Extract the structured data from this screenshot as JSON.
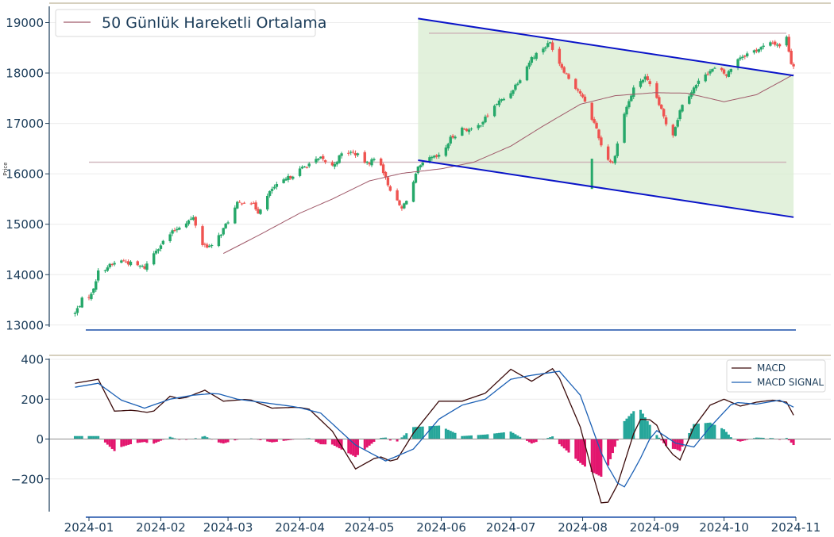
{
  "colors": {
    "up": "#26a86a",
    "down": "#ef5350",
    "ma": "#a05a6a",
    "channel": "#0a14c8",
    "channel_fill": "#d8ecd0",
    "macd": "#3a0a0a",
    "signal": "#1a5fb4",
    "hist_pos": "#26a69a",
    "hist_neg": "#e3166e",
    "hline": "#c8a8b0",
    "axis": "#1c3d5a",
    "separator": "#c8c0a8"
  },
  "chart_data": [
    {
      "type": "candlestick",
      "ylabel": "Price",
      "ylim": [
        12900,
        19100
      ],
      "yticks": [
        "13000",
        "14000",
        "15000",
        "16000",
        "17000",
        "18000",
        "19000"
      ],
      "legend": {
        "position": "top-left",
        "ma_label": "50 Günlük Hareketli Ortalama"
      },
      "grid": true,
      "resistance_levels": [
        18790,
        16230
      ],
      "channel": {
        "start_date": "2024-05-22",
        "end_date": "2024-10-31",
        "upper": [
          19080,
          17950
        ],
        "lower": [
          16270,
          15140
        ]
      },
      "ohlc_anchors": [
        [
          "2023-12-26",
          13230
        ],
        [
          "2023-12-29",
          13500
        ],
        [
          "2024-01-02",
          13600
        ],
        [
          "2024-01-05",
          14050
        ],
        [
          "2024-01-10",
          14180
        ],
        [
          "2024-01-15",
          14290
        ],
        [
          "2024-01-20",
          14200
        ],
        [
          "2024-01-25",
          14140
        ],
        [
          "2024-01-30",
          14500
        ],
        [
          "2024-02-05",
          14800
        ],
        [
          "2024-02-10",
          15000
        ],
        [
          "2024-02-15",
          15120
        ],
        [
          "2024-02-19",
          14600
        ],
        [
          "2024-02-23",
          14550
        ],
        [
          "2024-02-28",
          14900
        ],
        [
          "2024-03-05",
          15400
        ],
        [
          "2024-03-10",
          15500
        ],
        [
          "2024-03-14",
          15250
        ],
        [
          "2024-03-20",
          15700
        ],
        [
          "2024-03-25",
          15850
        ],
        [
          "2024-03-31",
          16050
        ],
        [
          "2024-04-05",
          16200
        ],
        [
          "2024-04-10",
          16300
        ],
        [
          "2024-04-15",
          16150
        ],
        [
          "2024-04-20",
          16450
        ],
        [
          "2024-04-25",
          16400
        ],
        [
          "2024-04-30",
          16200
        ],
        [
          "2024-05-05",
          16350
        ],
        [
          "2024-05-08",
          15900
        ],
        [
          "2024-05-12",
          15500
        ],
        [
          "2024-05-15",
          15300
        ],
        [
          "2024-05-19",
          15700
        ],
        [
          "2024-05-22",
          16100
        ],
        [
          "2024-05-27",
          16300
        ],
        [
          "2024-06-01",
          16350
        ],
        [
          "2024-06-05",
          16700
        ],
        [
          "2024-06-10",
          16900
        ],
        [
          "2024-06-15",
          16850
        ],
        [
          "2024-06-20",
          17100
        ],
        [
          "2024-06-25",
          17400
        ],
        [
          "2024-06-30",
          17550
        ],
        [
          "2024-07-05",
          17900
        ],
        [
          "2024-07-10",
          18300
        ],
        [
          "2024-07-15",
          18500
        ],
        [
          "2024-07-18",
          18600
        ],
        [
          "2024-07-22",
          18200
        ],
        [
          "2024-07-26",
          17900
        ],
        [
          "2024-07-31",
          17600
        ],
        [
          "2024-08-04",
          17200
        ],
        [
          "2024-08-07",
          16900
        ],
        [
          "2024-08-10",
          16400
        ],
        [
          "2024-08-14",
          16200
        ],
        [
          "2024-08-19",
          17200
        ],
        [
          "2024-08-24",
          17800
        ],
        [
          "2024-08-28",
          17900
        ],
        [
          "2024-09-02",
          17500
        ],
        [
          "2024-09-06",
          17000
        ],
        [
          "2024-09-09",
          16800
        ],
        [
          "2024-09-13",
          17400
        ],
        [
          "2024-09-18",
          17700
        ],
        [
          "2024-09-23",
          18000
        ],
        [
          "2024-09-28",
          18100
        ],
        [
          "2024-10-02",
          17950
        ],
        [
          "2024-10-07",
          18300
        ],
        [
          "2024-10-12",
          18400
        ],
        [
          "2024-10-17",
          18500
        ],
        [
          "2024-10-22",
          18600
        ],
        [
          "2024-10-25",
          18550
        ],
        [
          "2024-10-28",
          18700
        ],
        [
          "2024-10-30",
          18200
        ],
        [
          "2024-10-31",
          18150
        ]
      ],
      "ma50_anchors": [
        [
          "2024-02-28",
          14420
        ],
        [
          "2024-03-15",
          14800
        ],
        [
          "2024-04-01",
          15220
        ],
        [
          "2024-04-15",
          15500
        ],
        [
          "2024-05-01",
          15860
        ],
        [
          "2024-05-15",
          16010
        ],
        [
          "2024-06-01",
          16100
        ],
        [
          "2024-06-15",
          16230
        ],
        [
          "2024-07-01",
          16550
        ],
        [
          "2024-07-15",
          16950
        ],
        [
          "2024-07-31",
          17380
        ],
        [
          "2024-08-15",
          17550
        ],
        [
          "2024-09-01",
          17610
        ],
        [
          "2024-09-15",
          17600
        ],
        [
          "2024-10-01",
          17430
        ],
        [
          "2024-10-15",
          17570
        ],
        [
          "2024-10-31",
          17970
        ]
      ]
    },
    {
      "type": "line",
      "ylim": [
        -360,
        410
      ],
      "yticks": [
        "−200",
        "0",
        "200",
        "400"
      ],
      "legend": {
        "position": "top-right"
      },
      "grid": true,
      "x": [
        "2024-01",
        "2024-02",
        "2024-03",
        "2024-04",
        "2024-05",
        "2024-06",
        "2024-07",
        "2024-08",
        "2024-09",
        "2024-10",
        "2024-11"
      ],
      "series": [
        {
          "name": "MACD",
          "anchors": [
            [
              "2023-12-26",
              280
            ],
            [
              "2024-01-05",
              300
            ],
            [
              "2024-01-12",
              140
            ],
            [
              "2024-01-20",
              145
            ],
            [
              "2024-01-28",
              130
            ],
            [
              "2024-02-05",
              215
            ],
            [
              "2024-02-10",
              200
            ],
            [
              "2024-02-20",
              245
            ],
            [
              "2024-02-28",
              190
            ],
            [
              "2024-03-10",
              200
            ],
            [
              "2024-03-20",
              155
            ],
            [
              "2024-03-31",
              160
            ],
            [
              "2024-04-05",
              150
            ],
            [
              "2024-04-15",
              40
            ],
            [
              "2024-04-25",
              -150
            ],
            [
              "2024-05-05",
              -85
            ],
            [
              "2024-05-12",
              -120
            ],
            [
              "2024-05-20",
              30
            ],
            [
              "2024-05-31",
              190
            ],
            [
              "2024-06-10",
              190
            ],
            [
              "2024-06-20",
              230
            ],
            [
              "2024-07-01",
              350
            ],
            [
              "2024-07-10",
              290
            ],
            [
              "2024-07-20",
              360
            ],
            [
              "2024-07-31",
              60
            ],
            [
              "2024-08-05",
              -160
            ],
            [
              "2024-08-10",
              -360
            ],
            [
              "2024-08-16",
              -230
            ],
            [
              "2024-08-25",
              100
            ],
            [
              "2024-09-01",
              95
            ],
            [
              "2024-09-07",
              -60
            ],
            [
              "2024-09-12",
              -105
            ],
            [
              "2024-09-18",
              60
            ],
            [
              "2024-09-25",
              170
            ],
            [
              "2024-10-01",
              200
            ],
            [
              "2024-10-08",
              165
            ],
            [
              "2024-10-15",
              185
            ],
            [
              "2024-10-22",
              195
            ],
            [
              "2024-10-28",
              185
            ],
            [
              "2024-10-31",
              120
            ]
          ]
        },
        {
          "name": "MACD SIGNAL",
          "anchors": [
            [
              "2023-12-26",
              260
            ],
            [
              "2024-01-05",
              280
            ],
            [
              "2024-01-15",
              195
            ],
            [
              "2024-01-25",
              155
            ],
            [
              "2024-02-05",
              200
            ],
            [
              "2024-02-15",
              220
            ],
            [
              "2024-02-25",
              230
            ],
            [
              "2024-03-05",
              200
            ],
            [
              "2024-03-15",
              185
            ],
            [
              "2024-03-31",
              160
            ],
            [
              "2024-04-10",
              130
            ],
            [
              "2024-04-25",
              -30
            ],
            [
              "2024-05-08",
              -110
            ],
            [
              "2024-05-20",
              -50
            ],
            [
              "2024-05-31",
              100
            ],
            [
              "2024-06-10",
              170
            ],
            [
              "2024-06-20",
              200
            ],
            [
              "2024-07-01",
              300
            ],
            [
              "2024-07-10",
              320
            ],
            [
              "2024-07-22",
              340
            ],
            [
              "2024-07-31",
              220
            ],
            [
              "2024-08-10",
              -100
            ],
            [
              "2024-08-18",
              -260
            ],
            [
              "2024-08-25",
              -120
            ],
            [
              "2024-09-01",
              50
            ],
            [
              "2024-09-10",
              -20
            ],
            [
              "2024-09-18",
              -40
            ],
            [
              "2024-09-25",
              60
            ],
            [
              "2024-10-05",
              185
            ],
            [
              "2024-10-15",
              175
            ],
            [
              "2024-10-25",
              195
            ],
            [
              "2024-10-31",
              160
            ]
          ]
        }
      ]
    }
  ]
}
